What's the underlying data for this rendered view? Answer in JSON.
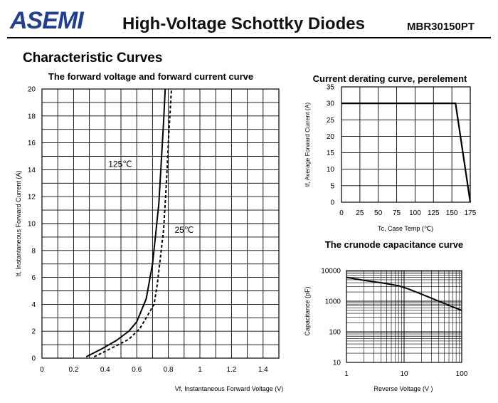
{
  "header": {
    "logo_text": "ASEMI",
    "title": "High-Voltage Schottky Diodes",
    "part_number": "MBR30150PT",
    "brand_color": "#1f3f93"
  },
  "section_title": "Characteristic Curves",
  "chart_data": [
    {
      "type": "line",
      "title": "The forward voltage and forward current curve",
      "xlabel": "Vf, Instantaneous Forward Voltage (V)",
      "ylabel": "If, Instantaneous Forward Current (A)",
      "xlim": [
        0,
        1.5
      ],
      "ylim": [
        0,
        20
      ],
      "x_tick_labels": [
        "0",
        "0.2",
        "0.4",
        "0.6",
        "0.8",
        "1",
        "1.2",
        "1.4"
      ],
      "x_tick_values": [
        0,
        0.2,
        0.4,
        0.6,
        0.8,
        1.0,
        1.2,
        1.4
      ],
      "y_tick_labels": [
        "0",
        "2",
        "4",
        "6",
        "8",
        "10",
        "12",
        "14",
        "16",
        "18",
        "20"
      ],
      "y_tick_values": [
        0,
        2,
        4,
        6,
        8,
        10,
        12,
        14,
        16,
        18,
        20
      ],
      "grid": true,
      "series": [
        {
          "name": "125℃",
          "style": "solid",
          "x": [
            0.28,
            0.38,
            0.47,
            0.55,
            0.6,
            0.66,
            0.7,
            0.72,
            0.74,
            0.75,
            0.76,
            0.77,
            0.78
          ],
          "y": [
            0.1,
            0.7,
            1.3,
            2.0,
            2.7,
            4.4,
            7.0,
            9.2,
            11.5,
            13.5,
            15.5,
            17.5,
            20
          ]
        },
        {
          "name": "25℃",
          "style": "dashed",
          "x": [
            0.33,
            0.45,
            0.55,
            0.62,
            0.66,
            0.71,
            0.73,
            0.75,
            0.77,
            0.78,
            0.79,
            0.8,
            0.82
          ],
          "y": [
            0.1,
            0.8,
            1.4,
            2.2,
            3.0,
            4.0,
            5.5,
            7.5,
            9.5,
            11.5,
            13.5,
            16.0,
            20
          ]
        }
      ],
      "annotations": [
        {
          "text": "125℃",
          "x": 0.42,
          "y": 14.2
        },
        {
          "text": "25℃",
          "x": 0.84,
          "y": 9.3
        }
      ]
    },
    {
      "type": "line",
      "title": "Current derating curve, perelement",
      "xlabel": "Tc, Case Temp (℃)",
      "ylabel": "If, Average Forward Current (A)",
      "xlim": [
        0,
        175
      ],
      "ylim": [
        0,
        35
      ],
      "x_tick_labels": [
        "0",
        "25",
        "50",
        "75",
        "100",
        "125",
        "150",
        "175"
      ],
      "x_tick_values": [
        0,
        25,
        50,
        75,
        100,
        125,
        150,
        175
      ],
      "y_tick_labels": [
        "0",
        "5",
        "10",
        "15",
        "20",
        "25",
        "30",
        "35"
      ],
      "y_tick_values": [
        0,
        5,
        10,
        15,
        20,
        25,
        30,
        35
      ],
      "grid": true,
      "series": [
        {
          "style": "solid",
          "x": [
            0,
            155,
            175
          ],
          "y": [
            30,
            30,
            0
          ]
        }
      ]
    },
    {
      "type": "line",
      "title": "The crunode capacitance curve",
      "xlabel": "Reverse Voltage (V )",
      "ylabel": "Capacitance (pF)",
      "x_scale": "log",
      "y_scale": "log",
      "xlim": [
        1,
        100
      ],
      "ylim": [
        10,
        10000
      ],
      "x_tick_labels": [
        "1",
        "10",
        "100"
      ],
      "x_tick_values": [
        1,
        10,
        100
      ],
      "y_tick_labels": [
        "10",
        "100",
        "1000",
        "10000"
      ],
      "y_tick_values": [
        10,
        100,
        1000,
        10000
      ],
      "grid": true,
      "series": [
        {
          "style": "solid",
          "x": [
            1,
            2,
            4,
            8,
            12,
            20,
            40,
            70,
            100
          ],
          "y": [
            6000,
            4800,
            4000,
            3200,
            2500,
            1700,
            1000,
            650,
            500
          ]
        }
      ]
    }
  ]
}
